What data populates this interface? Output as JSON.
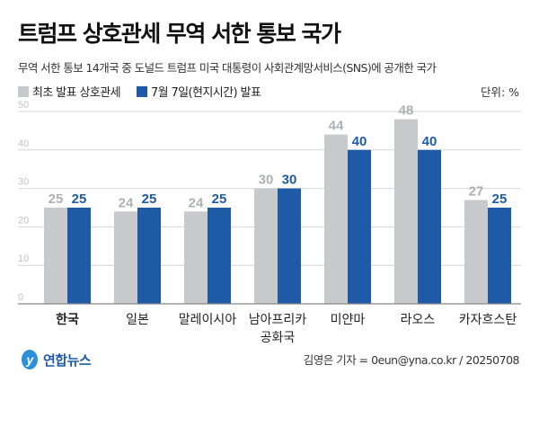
{
  "title": "트럼프 상호관세 무역 서한 통보 국가",
  "subtitle": "무역 서한 통보 14개국 중 도널드 트럼프 미국 대통령이 사회관계망서비스(SNS)에 공개한 국가",
  "unit_label": "단위: %",
  "logo_text": "연합뉴스",
  "credit": "김영은 기자 = 0eun@yna.co.kr / 20250708",
  "colors": {
    "initial": "#c8c9cb",
    "july7": "#1f5aa6",
    "initial_label": "#aeb0b3"
  },
  "chart_data": {
    "type": "bar",
    "categories": [
      "한국",
      "일본",
      "말레이시아",
      "남아프리카 공화국",
      "미얀마",
      "라오스",
      "카자흐스탄"
    ],
    "highlight_category": "한국",
    "series": [
      {
        "name": "최초 발표 상호관세",
        "values": [
          25,
          24,
          24,
          30,
          44,
          48,
          27
        ]
      },
      {
        "name": "7월 7일(현지시간) 발표",
        "values": [
          25,
          25,
          25,
          30,
          40,
          40,
          25
        ]
      }
    ],
    "yticks": [
      0,
      10,
      20,
      30,
      40,
      50
    ],
    "ylim": [
      0,
      50
    ],
    "grid": true,
    "legend": "top-left",
    "data_labels": true
  }
}
